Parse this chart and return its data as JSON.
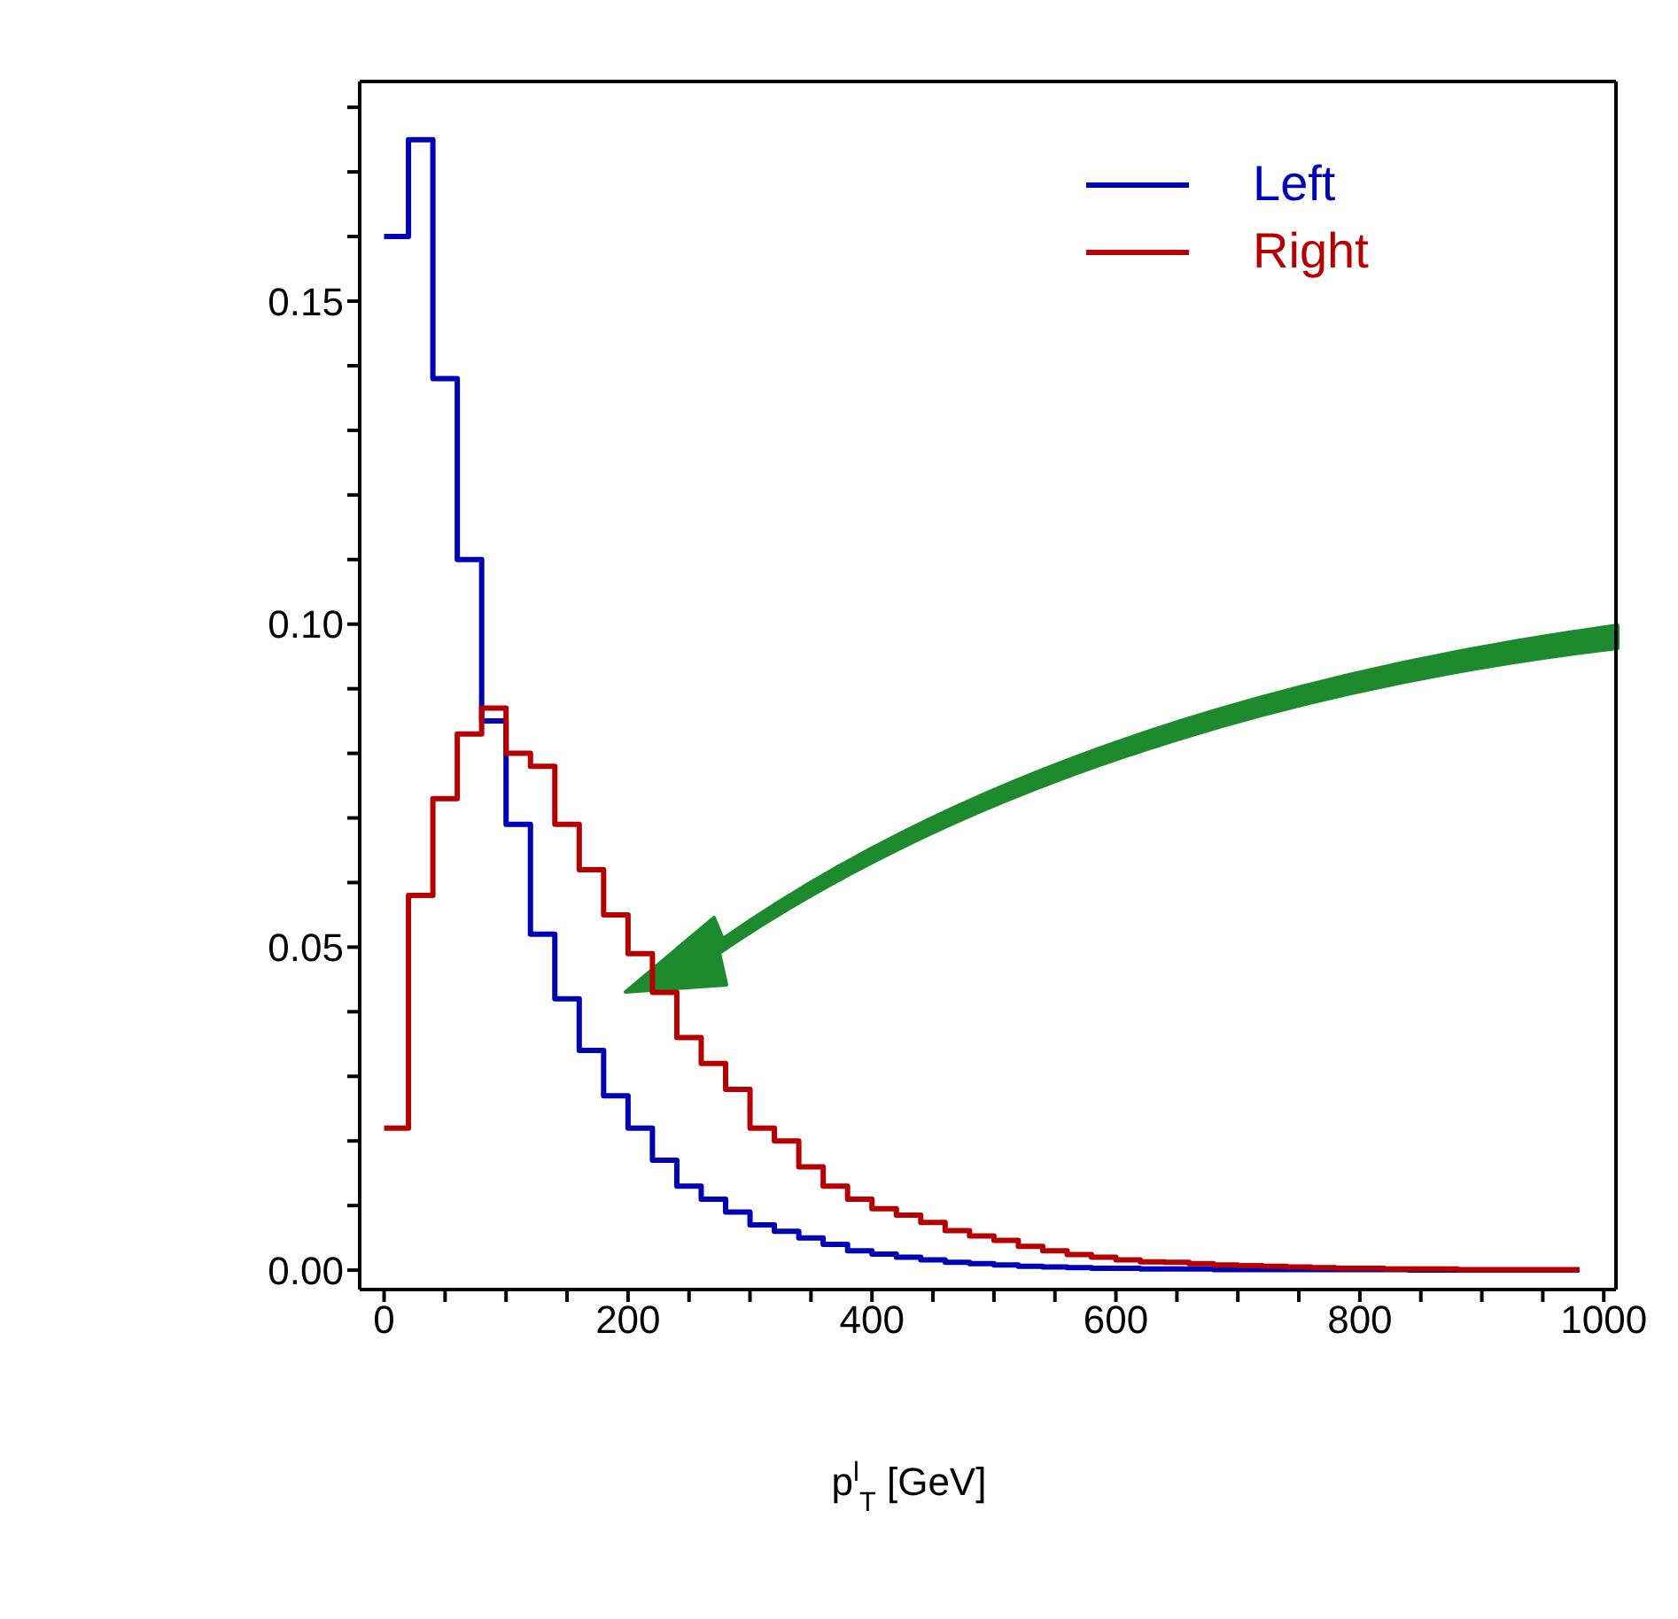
{
  "chart_data": {
    "type": "histogram",
    "xlabel": "p$^{l}$$_{T}$ [GeV]",
    "bins": [
      0,
      20,
      40,
      60,
      80,
      100,
      120,
      140,
      160,
      180,
      200,
      220,
      240,
      260,
      280,
      300,
      320,
      340,
      360,
      380,
      400,
      420,
      440,
      460,
      480,
      500,
      520,
      540,
      560,
      580,
      600,
      620,
      640,
      660,
      680,
      700,
      720,
      740,
      760,
      780,
      800,
      820,
      840,
      860,
      880,
      900,
      920,
      940,
      960,
      980
    ],
    "series": [
      {
        "name": "Left",
        "color": "#0000b4",
        "values": [
          0.16,
          0.175,
          0.138,
          0.11,
          0.085,
          0.069,
          0.052,
          0.042,
          0.034,
          0.027,
          0.022,
          0.017,
          0.013,
          0.011,
          0.009,
          0.007,
          0.006,
          0.005,
          0.004,
          0.003,
          0.0025,
          0.002,
          0.0016,
          0.0012,
          0.001,
          0.0008,
          0.0006,
          0.0005,
          0.0004,
          0.0003,
          0.0003,
          0.0002,
          0.0002,
          0.0002,
          0.0001,
          0.0001,
          0.0001,
          0.0001,
          0.0001,
          0.0001,
          0.0001,
          0.0001,
          0,
          0,
          0,
          0,
          0,
          0,
          0
        ]
      },
      {
        "name": "Right",
        "color": "#b40000",
        "values": [
          0.022,
          0.058,
          0.073,
          0.083,
          0.087,
          0.08,
          0.078,
          0.069,
          0.062,
          0.055,
          0.049,
          0.043,
          0.036,
          0.032,
          0.028,
          0.022,
          0.02,
          0.016,
          0.013,
          0.011,
          0.0095,
          0.0085,
          0.0074,
          0.0061,
          0.0053,
          0.0046,
          0.0037,
          0.003,
          0.0024,
          0.002,
          0.0016,
          0.0013,
          0.0012,
          0.001,
          0.0008,
          0.0007,
          0.0006,
          0.0005,
          0.0004,
          0.0003,
          0.0003,
          0.0002,
          0.0002,
          0.0002,
          0.0001,
          0.0001,
          0.0001,
          0.0001,
          0.0001
        ]
      }
    ],
    "xlim": [
      -20,
      1010
    ],
    "xticks": [
      0,
      {
        "value": 50,
        "label": null
      },
      {
        "value": 100,
        "label": null
      },
      {
        "value": 150,
        "label": null
      },
      200,
      {
        "value": 250,
        "label": null
      },
      {
        "value": 300,
        "label": null
      },
      {
        "value": 350,
        "label": null
      },
      400,
      {
        "value": 450,
        "label": null
      },
      {
        "value": 500,
        "label": null
      },
      {
        "value": 550,
        "label": null
      },
      600,
      {
        "value": 650,
        "label": null
      },
      {
        "value": 700,
        "label": null
      },
      {
        "value": 750,
        "label": null
      },
      800,
      {
        "value": 850,
        "label": null
      },
      {
        "value": 900,
        "label": null
      },
      {
        "value": 950,
        "label": null
      },
      1000
    ],
    "ylim": [
      -0.003,
      0.184
    ],
    "yticks": [
      {
        "value": 0,
        "label": "0.00"
      },
      {
        "value": 0.01,
        "label": null
      },
      {
        "value": 0.02,
        "label": null
      },
      {
        "value": 0.03,
        "label": null
      },
      {
        "value": 0.04,
        "label": null
      },
      {
        "value": 0.05,
        "label": "0.05"
      },
      {
        "value": 0.06,
        "label": null
      },
      {
        "value": 0.07,
        "label": null
      },
      {
        "value": 0.08,
        "label": null
      },
      {
        "value": 0.09,
        "label": null
      },
      {
        "value": 0.1,
        "label": "0.10"
      },
      {
        "value": 0.11,
        "label": null
      },
      {
        "value": 0.12,
        "label": null
      },
      {
        "value": 0.13,
        "label": null
      },
      {
        "value": 0.14,
        "label": null
      },
      {
        "value": 0.15,
        "label": "0.15"
      },
      {
        "value": 0.16,
        "label": null
      },
      {
        "value": 0.17,
        "label": null
      },
      {
        "value": 0.18,
        "label": null
      }
    ],
    "legend": "top right"
  }
}
